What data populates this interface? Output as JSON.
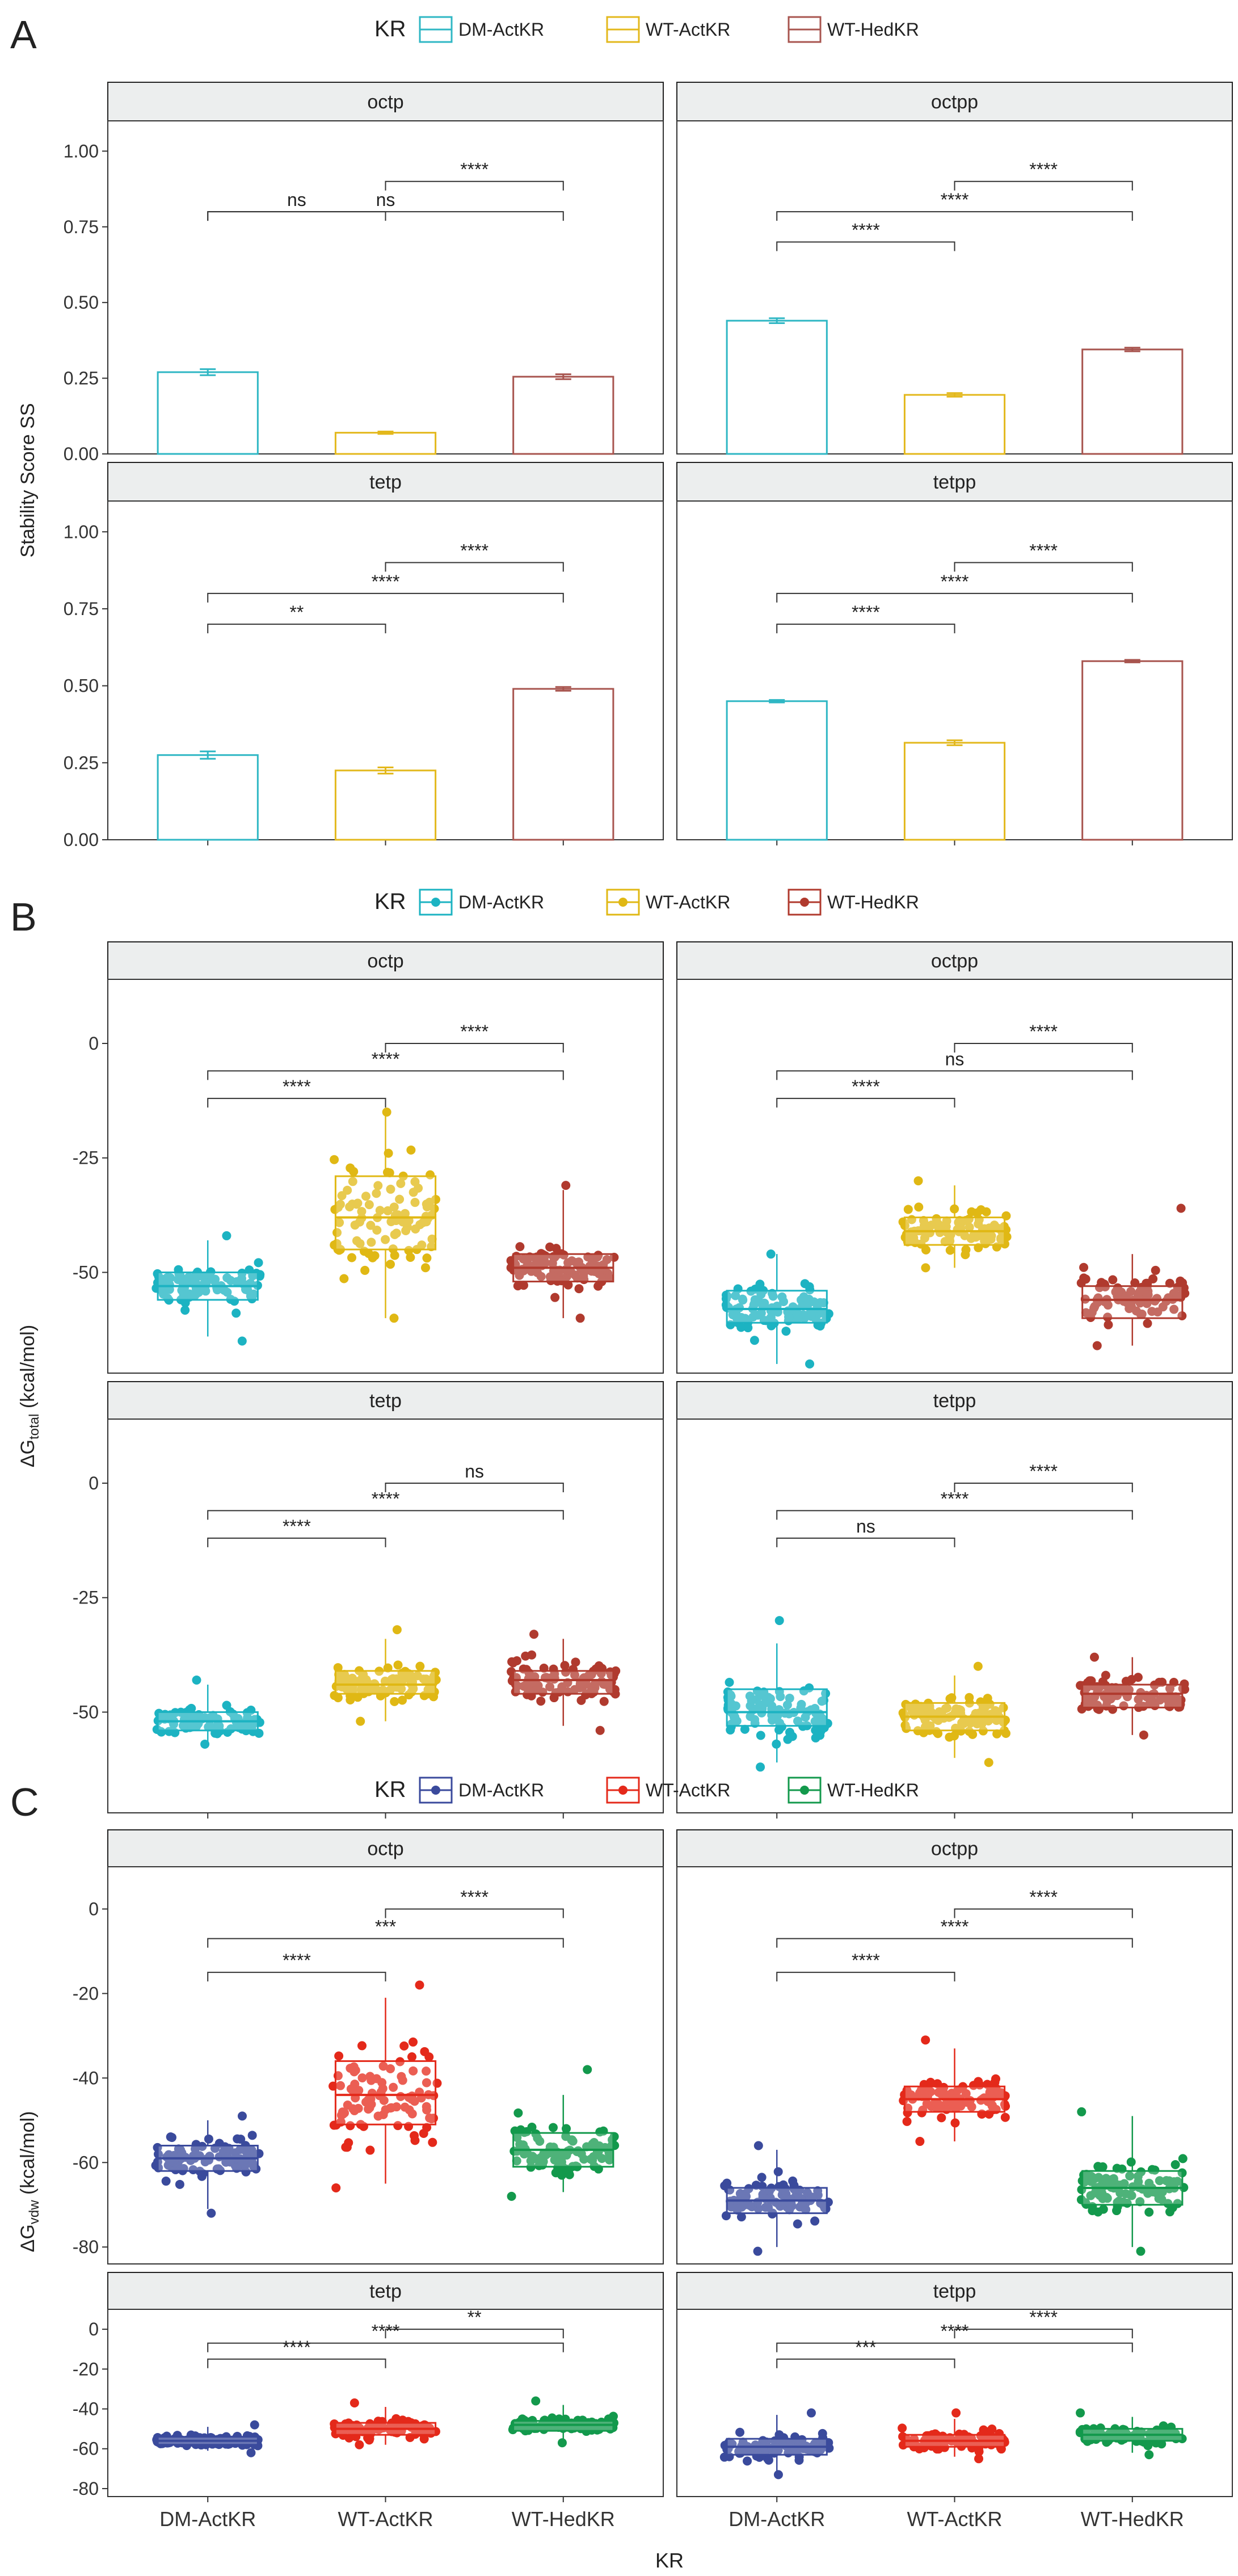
{
  "figure": {
    "x_axis_label": "KR",
    "legend_title": "KR",
    "categories": [
      "DM-ActKR",
      "WT-ActKR",
      "WT-HedKR"
    ]
  },
  "chart_data": [
    {
      "panel_letter": "A",
      "type": "bar",
      "legend_style": "box",
      "colors": [
        "#2fb7c4",
        "#e3b81c",
        "#a8554f"
      ],
      "ylabel": "Stability Score SS",
      "ylabel_main": "Stability Score SS",
      "ylabel_sub": "",
      "ylim": [
        0,
        1.1
      ],
      "yticks": [
        0,
        0.25,
        0.5,
        0.75,
        1.0
      ],
      "ytick_labels": [
        "0.00",
        "0.25",
        "0.50",
        "0.75",
        "1.00"
      ],
      "facets": [
        {
          "title": "octp",
          "values": [
            0.27,
            0.07,
            0.255
          ],
          "errors": [
            0.01,
            0.004,
            0.008
          ],
          "comparisons": [
            {
              "from": 1,
              "to": 2,
              "label": "ns",
              "y": 0.8
            },
            {
              "from": 2,
              "to": 3,
              "label": "****",
              "y": 0.9
            },
            {
              "from": 1,
              "to": 3,
              "label": "ns",
              "y": 0.8
            }
          ]
        },
        {
          "title": "octpp",
          "values": [
            0.44,
            0.195,
            0.345
          ],
          "errors": [
            0.008,
            0.006,
            0.006
          ],
          "comparisons": [
            {
              "from": 1,
              "to": 2,
              "label": "****",
              "y": 0.7
            },
            {
              "from": 2,
              "to": 3,
              "label": "****",
              "y": 0.9
            },
            {
              "from": 1,
              "to": 3,
              "label": "****",
              "y": 0.8
            }
          ]
        },
        {
          "title": "tetp",
          "values": [
            0.275,
            0.225,
            0.49
          ],
          "errors": [
            0.012,
            0.01,
            0.006
          ],
          "comparisons": [
            {
              "from": 1,
              "to": 2,
              "label": "**",
              "y": 0.7
            },
            {
              "from": 2,
              "to": 3,
              "label": "****",
              "y": 0.9
            },
            {
              "from": 1,
              "to": 3,
              "label": "****",
              "y": 0.8
            }
          ]
        },
        {
          "title": "tetpp",
          "values": [
            0.45,
            0.315,
            0.58
          ],
          "errors": [
            0.004,
            0.008,
            0.004
          ],
          "comparisons": [
            {
              "from": 1,
              "to": 2,
              "label": "****",
              "y": 0.7
            },
            {
              "from": 2,
              "to": 3,
              "label": "****",
              "y": 0.9
            },
            {
              "from": 1,
              "to": 3,
              "label": "****",
              "y": 0.8
            }
          ]
        }
      ]
    },
    {
      "panel_letter": "B",
      "type": "box",
      "legend_style": "boxpoint",
      "colors": [
        "#1cb3c2",
        "#e0b814",
        "#b03a2e"
      ],
      "ylabel": "ΔGtotal (kcal/mol)",
      "ylabel_main": "ΔG",
      "ylabel_sub": "total",
      "ylabel_tail": " (kcal/mol)",
      "ylim": [
        -72,
        14
      ],
      "yticks": [
        0,
        -25,
        -50
      ],
      "ytick_labels": [
        "0",
        "-25",
        "-50"
      ],
      "facets": [
        {
          "title": "octp",
          "boxes": [
            {
              "q1": -56,
              "median": -53,
              "q3": -50,
              "min": -64,
              "max": -43,
              "pmin": -65,
              "pmax": -42
            },
            {
              "q1": -45,
              "median": -38,
              "q3": -29,
              "min": -60,
              "max": -15,
              "pmin": -60,
              "pmax": -15
            },
            {
              "q1": -52,
              "median": -49,
              "q3": -46,
              "min": -60,
              "max": -32,
              "pmin": -60,
              "pmax": -31
            }
          ],
          "comparisons": [
            {
              "from": 1,
              "to": 2,
              "label": "****",
              "y": -12
            },
            {
              "from": 2,
              "to": 3,
              "label": "****",
              "y": 0
            },
            {
              "from": 1,
              "to": 3,
              "label": "****",
              "y": -6
            }
          ]
        },
        {
          "title": "octpp",
          "boxes": [
            {
              "q1": -61,
              "median": -58,
              "q3": -54,
              "min": -70,
              "max": -46,
              "pmin": -70,
              "pmax": -46
            },
            {
              "q1": -44,
              "median": -41,
              "q3": -38,
              "min": -49,
              "max": -31,
              "pmin": -49,
              "pmax": -30
            },
            {
              "q1": -60,
              "median": -56,
              "q3": -53,
              "min": -66,
              "max": -46,
              "pmin": -66,
              "pmax": -36
            }
          ],
          "comparisons": [
            {
              "from": 1,
              "to": 2,
              "label": "****",
              "y": -12
            },
            {
              "from": 2,
              "to": 3,
              "label": "****",
              "y": 0
            },
            {
              "from": 1,
              "to": 3,
              "label": "ns",
              "y": -6
            }
          ]
        },
        {
          "title": "tetp",
          "boxes": [
            {
              "q1": -54,
              "median": -52,
              "q3": -50,
              "min": -57,
              "max": -44,
              "pmin": -57,
              "pmax": -43
            },
            {
              "q1": -46,
              "median": -44,
              "q3": -41,
              "min": -52,
              "max": -34,
              "pmin": -52,
              "pmax": -32
            },
            {
              "q1": -46,
              "median": -43,
              "q3": -41,
              "min": -53,
              "max": -34,
              "pmin": -54,
              "pmax": -33
            }
          ],
          "comparisons": [
            {
              "from": 1,
              "to": 2,
              "label": "****",
              "y": -12
            },
            {
              "from": 2,
              "to": 3,
              "label": "ns",
              "y": 0
            },
            {
              "from": 1,
              "to": 3,
              "label": "****",
              "y": -6
            }
          ]
        },
        {
          "title": "tetpp",
          "boxes": [
            {
              "q1": -53,
              "median": -50,
              "q3": -45,
              "min": -61,
              "max": -35,
              "pmin": -62,
              "pmax": -30
            },
            {
              "q1": -54,
              "median": -51,
              "q3": -48,
              "min": -60,
              "max": -42,
              "pmin": -61,
              "pmax": -40
            },
            {
              "q1": -49,
              "median": -46,
              "q3": -44,
              "min": -55,
              "max": -38,
              "pmin": -55,
              "pmax": -38
            }
          ],
          "comparisons": [
            {
              "from": 1,
              "to": 2,
              "label": "ns",
              "y": -12
            },
            {
              "from": 2,
              "to": 3,
              "label": "****",
              "y": 0
            },
            {
              "from": 1,
              "to": 3,
              "label": "****",
              "y": -6
            }
          ]
        }
      ]
    },
    {
      "panel_letter": "C",
      "type": "box",
      "legend_style": "boxpoint",
      "colors": [
        "#3a4a9c",
        "#e4291a",
        "#13994c"
      ],
      "ylabel": "ΔGvdw (kcal/mol)",
      "ylabel_main": "ΔG",
      "ylabel_sub": "vdw",
      "ylabel_tail": " (kcal/mol)",
      "ylim": [
        -84,
        10
      ],
      "yticks": [
        0,
        -20,
        -40,
        -60,
        -80
      ],
      "ytick_labels": [
        "0",
        "-20",
        "-40",
        "-60",
        "-80"
      ],
      "facets": [
        {
          "title": "octp",
          "boxes": [
            {
              "q1": -62,
              "median": -59,
              "q3": -56,
              "min": -71,
              "max": -50,
              "pmin": -72,
              "pmax": -49
            },
            {
              "q1": -51,
              "median": -44,
              "q3": -36,
              "min": -65,
              "max": -21,
              "pmin": -66,
              "pmax": -18
            },
            {
              "q1": -61,
              "median": -57,
              "q3": -53,
              "min": -67,
              "max": -44,
              "pmin": -68,
              "pmax": -38
            }
          ],
          "comparisons": [
            {
              "from": 1,
              "to": 2,
              "label": "****",
              "y": -15
            },
            {
              "from": 2,
              "to": 3,
              "label": "****",
              "y": 0
            },
            {
              "from": 1,
              "to": 3,
              "label": "***",
              "y": -7
            }
          ]
        },
        {
          "title": "octpp",
          "boxes": [
            {
              "q1": -72,
              "median": -69,
              "q3": -66,
              "min": -80,
              "max": -57,
              "pmin": -81,
              "pmax": -56
            },
            {
              "q1": -48,
              "median": -45,
              "q3": -42,
              "min": -55,
              "max": -33,
              "pmin": -55,
              "pmax": -31
            },
            {
              "q1": -70,
              "median": -66,
              "q3": -62,
              "min": -80,
              "max": -49,
              "pmin": -81,
              "pmax": -48
            }
          ],
          "comparisons": [
            {
              "from": 1,
              "to": 2,
              "label": "****",
              "y": -15
            },
            {
              "from": 2,
              "to": 3,
              "label": "****",
              "y": 0
            },
            {
              "from": 1,
              "to": 3,
              "label": "****",
              "y": -7
            }
          ]
        },
        {
          "title": "tetp",
          "boxes": [
            {
              "q1": -58,
              "median": -56,
              "q3": -54,
              "min": -61,
              "max": -49,
              "pmin": -62,
              "pmax": -48
            },
            {
              "q1": -53,
              "median": -50,
              "q3": -47,
              "min": -58,
              "max": -39,
              "pmin": -58,
              "pmax": -37
            },
            {
              "q1": -51,
              "median": -48,
              "q3": -46,
              "min": -56,
              "max": -38,
              "pmin": -57,
              "pmax": -36
            }
          ],
          "comparisons": [
            {
              "from": 1,
              "to": 2,
              "label": "****",
              "y": -15
            },
            {
              "from": 2,
              "to": 3,
              "label": "**",
              "y": 0
            },
            {
              "from": 1,
              "to": 3,
              "label": "****",
              "y": -7
            }
          ]
        },
        {
          "title": "tetpp",
          "boxes": [
            {
              "q1": -63,
              "median": -59,
              "q3": -55,
              "min": -72,
              "max": -43,
              "pmin": -73,
              "pmax": -42
            },
            {
              "q1": -59,
              "median": -56,
              "q3": -53,
              "min": -64,
              "max": -45,
              "pmin": -65,
              "pmax": -42
            },
            {
              "q1": -56,
              "median": -53,
              "q3": -50,
              "min": -62,
              "max": -44,
              "pmin": -63,
              "pmax": -42
            }
          ],
          "comparisons": [
            {
              "from": 1,
              "to": 2,
              "label": "***",
              "y": -15
            },
            {
              "from": 2,
              "to": 3,
              "label": "****",
              "y": 0
            },
            {
              "from": 1,
              "to": 3,
              "label": "****",
              "y": -7
            }
          ]
        }
      ]
    }
  ]
}
